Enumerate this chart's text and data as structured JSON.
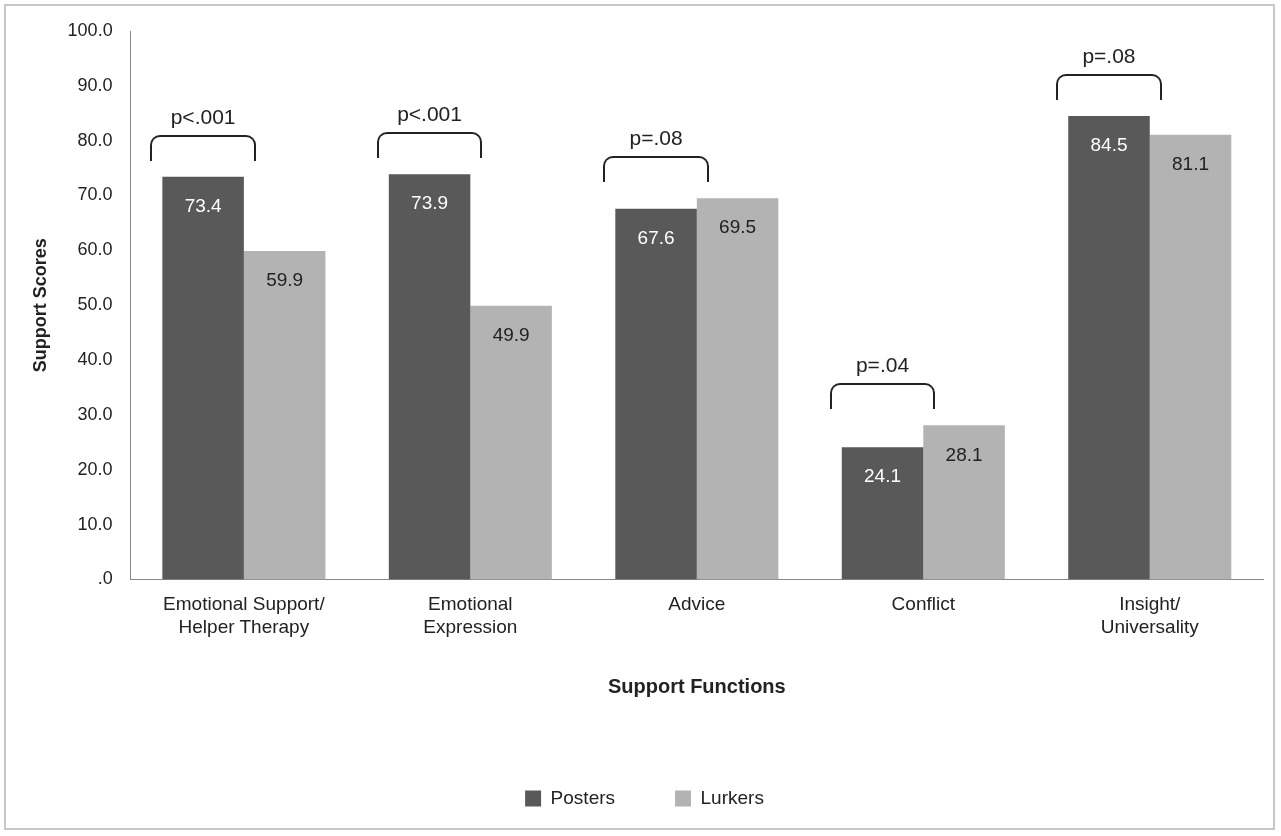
{
  "chart_data": {
    "type": "bar",
    "categories": [
      "Emotional Support/\nHelper Therapy",
      "Emotional\nExpression",
      "Advice",
      "Conflict",
      "Insight/\nUniversality"
    ],
    "series": [
      {
        "name": "Posters",
        "color": "#595959",
        "values": [
          73.4,
          73.9,
          67.6,
          24.1,
          84.5
        ]
      },
      {
        "name": "Lurkers",
        "color": "#b3b3b3",
        "values": [
          59.9,
          49.9,
          69.5,
          28.1,
          81.1
        ]
      }
    ],
    "xlabel": "Support Functions",
    "ylabel": "Support Scores",
    "ylim": [
      0,
      100
    ],
    "yticks": [
      {
        "value": 0,
        "label": ".0"
      },
      {
        "value": 10,
        "label": "10.0"
      },
      {
        "value": 20,
        "label": "20.0"
      },
      {
        "value": 30,
        "label": "30.0"
      },
      {
        "value": 40,
        "label": "40.0"
      },
      {
        "value": 50,
        "label": "50.0"
      },
      {
        "value": 60,
        "label": "60.0"
      },
      {
        "value": 70,
        "label": "70.0"
      },
      {
        "value": 80,
        "label": "80.0"
      },
      {
        "value": 90,
        "label": "90.0"
      },
      {
        "value": 100,
        "label": "100.0"
      }
    ],
    "annotations": [
      "p<.001",
      "p<.001",
      "p=.08",
      "p=.04",
      "p=.08"
    ],
    "data_labels": true,
    "grid": false,
    "legend": "bottom"
  }
}
